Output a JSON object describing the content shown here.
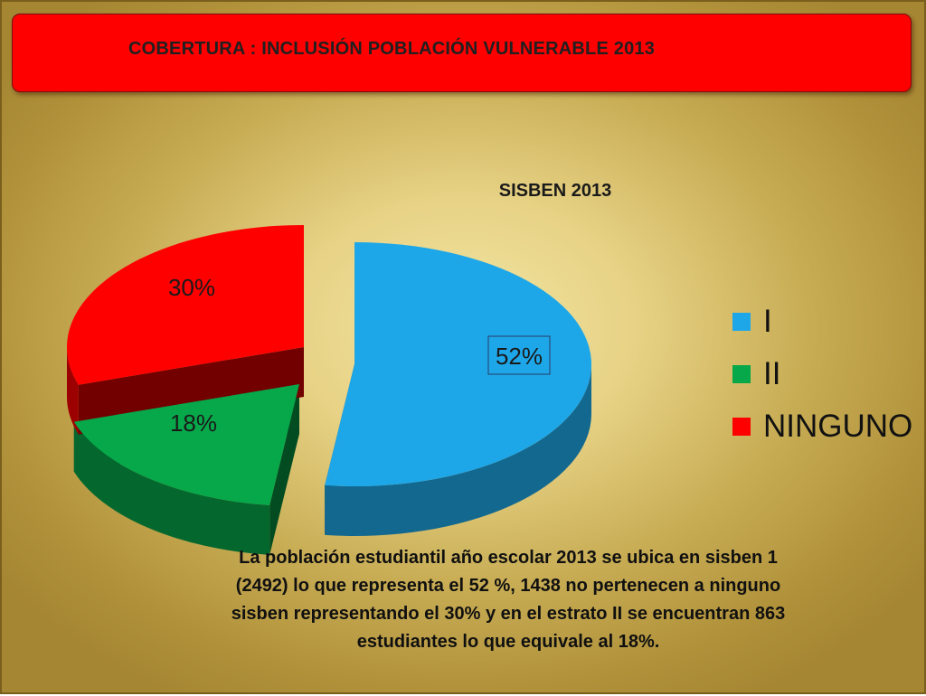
{
  "header": {
    "title": "COBERTURA :  INCLUSIÓN POBLACIÓN VULNERABLE  2013"
  },
  "chart_data": {
    "type": "pie",
    "title": "SISBEN 2013",
    "categories": [
      "I",
      "II",
      "NINGUNO"
    ],
    "values": [
      52,
      18,
      30
    ],
    "labels": [
      "52%",
      "18%",
      "30%"
    ],
    "colors": [
      "#1ea7e8",
      "#06a84a",
      "#fe0000"
    ],
    "legend_position": "right",
    "style": "3d-exploded"
  },
  "caption": "La población estudiantil año escolar 2013 se ubica en sisben  1 (2492) lo que representa el 52 %, 1438 no pertenecen a ninguno sisben representando el 30% y en el estrato II se encuentran 863 estudiantes lo que equivale al 18%."
}
